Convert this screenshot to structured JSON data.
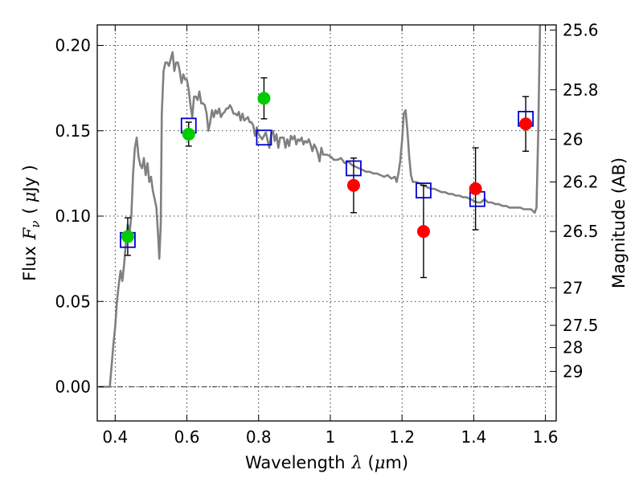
{
  "chart_data": {
    "type": "scatter",
    "xlabel": {
      "prefix": "Wavelength",
      "symbol": "λ",
      "unit_open": " (",
      "unit_mu": "μ",
      "unit_rest": "m)"
    },
    "ylabel": {
      "prefix": "Flux",
      "symbol": "F",
      "subscript": "ν",
      "unit_open": "(",
      "unit_mu": "μ",
      "unit_rest": "Jy )"
    },
    "y2label": "Magnitude (AB)",
    "xlim": [
      0.35,
      1.63
    ],
    "ylim": [
      -0.02,
      0.212
    ],
    "x_ticks": [
      {
        "value": 0.4,
        "label": "0.4"
      },
      {
        "value": 0.6,
        "label": "0.6"
      },
      {
        "value": 0.8,
        "label": "0.8"
      },
      {
        "value": 1.0,
        "label": "1"
      },
      {
        "value": 1.2,
        "label": "1.2"
      },
      {
        "value": 1.4,
        "label": "1.4"
      },
      {
        "value": 1.6,
        "label": "1.6"
      }
    ],
    "y_ticks": [
      {
        "value": 0.0,
        "label": "0.00"
      },
      {
        "value": 0.05,
        "label": "0.05"
      },
      {
        "value": 0.1,
        "label": "0.10"
      },
      {
        "value": 0.15,
        "label": "0.15"
      },
      {
        "value": 0.2,
        "label": "0.20"
      }
    ],
    "y2_ticks": [
      {
        "label": "25.6",
        "flux": 0.209
      },
      {
        "label": "25.8",
        "flux": 0.174
      },
      {
        "label": "26",
        "flux": 0.145
      },
      {
        "label": "26.2",
        "flux": 0.12
      },
      {
        "label": "26.5",
        "flux": 0.091
      },
      {
        "label": "27",
        "flux": 0.058
      },
      {
        "label": "27.5",
        "flux": 0.036
      },
      {
        "label": "28",
        "flux": 0.023
      },
      {
        "label": "29",
        "flux": 0.009
      }
    ],
    "grid": true,
    "zero_line": 0.0,
    "colors": {
      "model": "#808080",
      "green": "#00cc00",
      "red": "#ff0000",
      "box": "#0000cc",
      "error": "#000000"
    },
    "series": [
      {
        "marker": "line",
        "points": [
          [
            0.355,
            0.0
          ],
          [
            0.37,
            0.0
          ],
          [
            0.385,
            0.0
          ],
          [
            0.39,
            0.012
          ],
          [
            0.395,
            0.025
          ],
          [
            0.4,
            0.035
          ],
          [
            0.405,
            0.05
          ],
          [
            0.41,
            0.06
          ],
          [
            0.415,
            0.068
          ],
          [
            0.42,
            0.062
          ],
          [
            0.425,
            0.072
          ],
          [
            0.43,
            0.085
          ],
          [
            0.435,
            0.095
          ],
          [
            0.44,
            0.09
          ],
          [
            0.445,
            0.1
          ],
          [
            0.45,
            0.125
          ],
          [
            0.455,
            0.14
          ],
          [
            0.46,
            0.146
          ],
          [
            0.465,
            0.135
          ],
          [
            0.47,
            0.13
          ],
          [
            0.475,
            0.128
          ],
          [
            0.48,
            0.134
          ],
          [
            0.485,
            0.124
          ],
          [
            0.49,
            0.131
          ],
          [
            0.495,
            0.12
          ],
          [
            0.5,
            0.123
          ],
          [
            0.505,
            0.115
          ],
          [
            0.51,
            0.11
          ],
          [
            0.515,
            0.105
          ],
          [
            0.52,
            0.088
          ],
          [
            0.523,
            0.075
          ],
          [
            0.527,
            0.095
          ],
          [
            0.53,
            0.16
          ],
          [
            0.535,
            0.185
          ],
          [
            0.54,
            0.19
          ],
          [
            0.545,
            0.19
          ],
          [
            0.55,
            0.188
          ],
          [
            0.555,
            0.192
          ],
          [
            0.56,
            0.196
          ],
          [
            0.565,
            0.185
          ],
          [
            0.57,
            0.19
          ],
          [
            0.575,
            0.19
          ],
          [
            0.58,
            0.185
          ],
          [
            0.585,
            0.178
          ],
          [
            0.59,
            0.183
          ],
          [
            0.595,
            0.18
          ],
          [
            0.6,
            0.18
          ],
          [
            0.605,
            0.174
          ],
          [
            0.61,
            0.165
          ],
          [
            0.615,
            0.158
          ],
          [
            0.62,
            0.17
          ],
          [
            0.625,
            0.17
          ],
          [
            0.63,
            0.168
          ],
          [
            0.635,
            0.173
          ],
          [
            0.64,
            0.166
          ],
          [
            0.645,
            0.166
          ],
          [
            0.65,
            0.165
          ],
          [
            0.655,
            0.16
          ],
          [
            0.66,
            0.15
          ],
          [
            0.665,
            0.155
          ],
          [
            0.67,
            0.162
          ],
          [
            0.675,
            0.158
          ],
          [
            0.68,
            0.162
          ],
          [
            0.685,
            0.16
          ],
          [
            0.69,
            0.163
          ],
          [
            0.695,
            0.158
          ],
          [
            0.7,
            0.16
          ],
          [
            0.705,
            0.161
          ],
          [
            0.71,
            0.163
          ],
          [
            0.715,
            0.163
          ],
          [
            0.72,
            0.165
          ],
          [
            0.725,
            0.163
          ],
          [
            0.73,
            0.16
          ],
          [
            0.735,
            0.16
          ],
          [
            0.74,
            0.159
          ],
          [
            0.745,
            0.161
          ],
          [
            0.75,
            0.156
          ],
          [
            0.755,
            0.16
          ],
          [
            0.76,
            0.156
          ],
          [
            0.765,
            0.157
          ],
          [
            0.77,
            0.158
          ],
          [
            0.775,
            0.155
          ],
          [
            0.78,
            0.155
          ],
          [
            0.785,
            0.153
          ],
          [
            0.79,
            0.147
          ],
          [
            0.795,
            0.152
          ],
          [
            0.8,
            0.148
          ],
          [
            0.81,
            0.145
          ],
          [
            0.82,
            0.149
          ],
          [
            0.83,
            0.14
          ],
          [
            0.835,
            0.148
          ],
          [
            0.84,
            0.15
          ],
          [
            0.845,
            0.144
          ],
          [
            0.85,
            0.148
          ],
          [
            0.855,
            0.14
          ],
          [
            0.86,
            0.146
          ],
          [
            0.87,
            0.146
          ],
          [
            0.875,
            0.14
          ],
          [
            0.88,
            0.145
          ],
          [
            0.885,
            0.141
          ],
          [
            0.89,
            0.147
          ],
          [
            0.895,
            0.145
          ],
          [
            0.9,
            0.147
          ],
          [
            0.905,
            0.142
          ],
          [
            0.91,
            0.145
          ],
          [
            0.915,
            0.144
          ],
          [
            0.92,
            0.146
          ],
          [
            0.925,
            0.142
          ],
          [
            0.93,
            0.144
          ],
          [
            0.935,
            0.143
          ],
          [
            0.94,
            0.145
          ],
          [
            0.945,
            0.142
          ],
          [
            0.95,
            0.138
          ],
          [
            0.955,
            0.142
          ],
          [
            0.96,
            0.14
          ],
          [
            0.965,
            0.137
          ],
          [
            0.97,
            0.132
          ],
          [
            0.975,
            0.14
          ],
          [
            0.98,
            0.136
          ],
          [
            0.99,
            0.136
          ],
          [
            1.0,
            0.135
          ],
          [
            1.01,
            0.133
          ],
          [
            1.02,
            0.133
          ],
          [
            1.03,
            0.134
          ],
          [
            1.04,
            0.131
          ],
          [
            1.05,
            0.132
          ],
          [
            1.06,
            0.13
          ],
          [
            1.07,
            0.129
          ],
          [
            1.08,
            0.128
          ],
          [
            1.09,
            0.127
          ],
          [
            1.1,
            0.126
          ],
          [
            1.11,
            0.126
          ],
          [
            1.12,
            0.125
          ],
          [
            1.13,
            0.125
          ],
          [
            1.14,
            0.124
          ],
          [
            1.15,
            0.123
          ],
          [
            1.16,
            0.124
          ],
          [
            1.17,
            0.122
          ],
          [
            1.18,
            0.123
          ],
          [
            1.185,
            0.12
          ],
          [
            1.19,
            0.125
          ],
          [
            1.195,
            0.132
          ],
          [
            1.2,
            0.144
          ],
          [
            1.205,
            0.16
          ],
          [
            1.21,
            0.162
          ],
          [
            1.215,
            0.15
          ],
          [
            1.22,
            0.135
          ],
          [
            1.225,
            0.124
          ],
          [
            1.23,
            0.12
          ],
          [
            1.24,
            0.12
          ],
          [
            1.25,
            0.119
          ],
          [
            1.26,
            0.118
          ],
          [
            1.27,
            0.117
          ],
          [
            1.28,
            0.116
          ],
          [
            1.29,
            0.116
          ],
          [
            1.3,
            0.115
          ],
          [
            1.31,
            0.114
          ],
          [
            1.32,
            0.114
          ],
          [
            1.33,
            0.113
          ],
          [
            1.34,
            0.113
          ],
          [
            1.35,
            0.112
          ],
          [
            1.36,
            0.112
          ],
          [
            1.37,
            0.111
          ],
          [
            1.38,
            0.111
          ],
          [
            1.39,
            0.11
          ],
          [
            1.4,
            0.109
          ],
          [
            1.41,
            0.108
          ],
          [
            1.42,
            0.108
          ],
          [
            1.43,
            0.11
          ],
          [
            1.44,
            0.108
          ],
          [
            1.45,
            0.108
          ],
          [
            1.46,
            0.107
          ],
          [
            1.47,
            0.107
          ],
          [
            1.48,
            0.106
          ],
          [
            1.49,
            0.106
          ],
          [
            1.5,
            0.105
          ],
          [
            1.51,
            0.105
          ],
          [
            1.52,
            0.105
          ],
          [
            1.53,
            0.105
          ],
          [
            1.54,
            0.104
          ],
          [
            1.55,
            0.104
          ],
          [
            1.56,
            0.104
          ],
          [
            1.57,
            0.102
          ],
          [
            1.575,
            0.105
          ],
          [
            1.58,
            0.15
          ],
          [
            1.585,
            0.212
          ]
        ]
      },
      {
        "marker": "open-square",
        "points": [
          [
            0.435,
            0.086
          ],
          [
            0.605,
            0.153
          ],
          [
            0.815,
            0.146
          ],
          [
            1.065,
            0.128
          ],
          [
            1.26,
            0.115
          ],
          [
            1.41,
            0.11
          ],
          [
            1.545,
            0.157
          ]
        ]
      },
      {
        "marker": "circle-green",
        "points": [
          [
            0.435,
            0.088
          ],
          [
            0.605,
            0.148
          ],
          [
            0.815,
            0.169
          ]
        ],
        "errors": [
          0.011,
          0.007,
          0.012
        ]
      },
      {
        "marker": "circle-red",
        "points": [
          [
            1.065,
            0.118
          ],
          [
            1.26,
            0.091
          ],
          [
            1.405,
            0.116
          ],
          [
            1.545,
            0.154
          ]
        ],
        "errors": [
          0.016,
          0.027,
          0.024,
          0.016
        ]
      }
    ]
  }
}
